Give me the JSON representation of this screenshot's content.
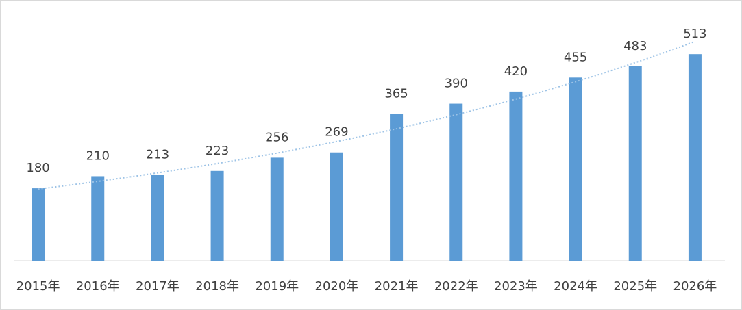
{
  "chart_data": {
    "type": "bar",
    "categories": [
      "2015年",
      "2016年",
      "2017年",
      "2018年",
      "2019年",
      "2020年",
      "2021年",
      "2022年",
      "2023年",
      "2024年",
      "2025年",
      "2026年"
    ],
    "values": [
      180,
      210,
      213,
      223,
      256,
      269,
      365,
      390,
      420,
      455,
      483,
      513
    ],
    "color": "#5b9bd5",
    "ylim": [
      0,
      600
    ],
    "trendline": true
  }
}
